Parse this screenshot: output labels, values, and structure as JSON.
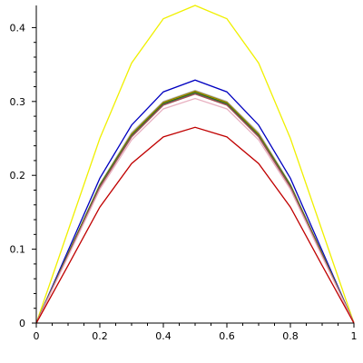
{
  "chart_data": {
    "type": "line",
    "title": "",
    "xlabel": "",
    "ylabel": "",
    "xlim": [
      0,
      1
    ],
    "ylim": [
      0,
      0.43
    ],
    "grid": false,
    "legend": "none",
    "x_ticks": [
      0,
      0.2,
      0.4,
      0.6,
      0.8,
      1
    ],
    "x_tick_labels": [
      "0",
      "0.2",
      "0.4",
      "0.6",
      "0.8",
      "1"
    ],
    "y_ticks": [
      0,
      0.1,
      0.2,
      0.3,
      0.4
    ],
    "y_tick_labels": [
      "0",
      "0.1",
      "0.2",
      "0.3",
      "0.4"
    ],
    "x": [
      0,
      0.1,
      0.2,
      0.3,
      0.4,
      0.5,
      0.6,
      0.7,
      0.8,
      0.9,
      1.0
    ],
    "series": [
      {
        "color": "#f0f000",
        "values": [
          0,
          0.125,
          0.25,
          0.352,
          0.412,
          0.43,
          0.412,
          0.352,
          0.25,
          0.125,
          0
        ]
      },
      {
        "color": "#0000c0",
        "values": [
          0,
          0.098,
          0.196,
          0.268,
          0.313,
          0.329,
          0.313,
          0.268,
          0.196,
          0.098,
          0
        ]
      },
      {
        "color": "#c0c0c0",
        "values": [
          0,
          0.094,
          0.188,
          0.258,
          0.3,
          0.315,
          0.3,
          0.258,
          0.188,
          0.094,
          0
        ]
      },
      {
        "color": "#808000",
        "values": [
          0,
          0.094,
          0.187,
          0.256,
          0.299,
          0.314,
          0.299,
          0.256,
          0.187,
          0.094,
          0
        ]
      },
      {
        "color": "#c08000",
        "values": [
          0,
          0.093,
          0.186,
          0.255,
          0.298,
          0.313,
          0.298,
          0.255,
          0.186,
          0.093,
          0
        ]
      },
      {
        "color": "#008000",
        "values": [
          0,
          0.093,
          0.186,
          0.254,
          0.297,
          0.312,
          0.297,
          0.254,
          0.186,
          0.093,
          0
        ]
      },
      {
        "color": "#606060",
        "values": [
          0,
          0.092,
          0.185,
          0.253,
          0.296,
          0.311,
          0.296,
          0.253,
          0.185,
          0.092,
          0
        ]
      },
      {
        "color": "#a05050",
        "values": [
          0,
          0.092,
          0.184,
          0.252,
          0.295,
          0.31,
          0.295,
          0.252,
          0.184,
          0.092,
          0
        ]
      },
      {
        "color": "#e8b0c0",
        "values": [
          0,
          0.09,
          0.181,
          0.248,
          0.29,
          0.304,
          0.29,
          0.248,
          0.181,
          0.09,
          0
        ]
      },
      {
        "color": "#c00000",
        "values": [
          0,
          0.078,
          0.157,
          0.216,
          0.252,
          0.265,
          0.252,
          0.216,
          0.157,
          0.078,
          0
        ]
      }
    ]
  }
}
